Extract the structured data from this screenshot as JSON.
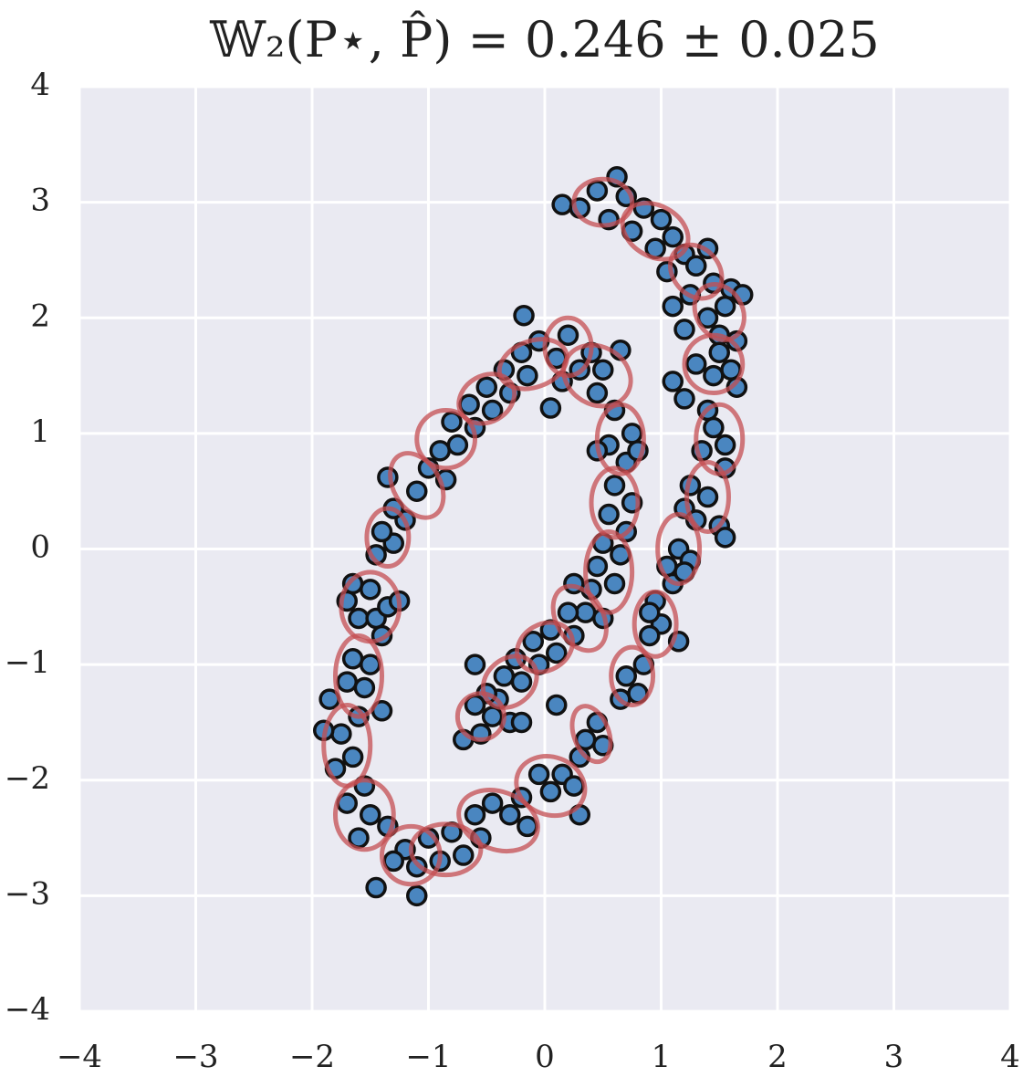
{
  "chart_data": {
    "type": "scatter",
    "title": "𝕎₂(P⋆, P̂) = 0.246 ± 0.025",
    "xlim": [
      -4,
      4
    ],
    "ylim": [
      -4,
      4
    ],
    "xticks": [
      {
        "value": -4,
        "label": "−4"
      },
      {
        "value": -3,
        "label": "−3"
      },
      {
        "value": -2,
        "label": "−2"
      },
      {
        "value": -1,
        "label": "−1"
      },
      0,
      1,
      2,
      3,
      4
    ],
    "yticks": [
      {
        "value": -4,
        "label": "−4"
      },
      {
        "value": -3,
        "label": "−3"
      },
      {
        "value": -2,
        "label": "−2"
      },
      {
        "value": -1,
        "label": "−1"
      },
      0,
      1,
      2,
      3,
      4
    ],
    "grid": true,
    "points": {
      "color": "#4a86c0",
      "edgecolor": "#111111",
      "x": [
        0.15,
        0.3,
        0.45,
        0.62,
        0.55,
        0.7,
        0.85,
        0.75,
        1.0,
        0.95,
        1.1,
        1.2,
        1.05,
        1.3,
        1.4,
        1.25,
        1.45,
        1.55,
        1.6,
        1.4,
        1.7,
        1.5,
        1.65,
        1.2,
        1.1,
        1.3,
        1.45,
        1.6,
        1.1,
        1.2,
        1.5,
        1.65,
        1.4,
        1.45,
        1.55,
        1.35,
        1.55,
        1.25,
        1.4,
        1.2,
        1.5,
        1.3,
        1.55,
        1.15,
        1.05,
        1.25,
        1.1,
        1.2,
        0.95,
        1.0,
        0.9,
        1.15,
        0.85,
        0.7,
        0.8,
        0.65,
        0.9,
        0.45,
        0.35,
        0.5,
        0.3,
        0.15,
        0.05,
        -0.05,
        0.25,
        0.3,
        -0.2,
        -0.3,
        -0.45,
        -0.15,
        -0.55,
        -0.6,
        -0.8,
        -0.7,
        -0.9,
        -1.0,
        -1.1,
        -1.2,
        -1.1,
        -1.3,
        -1.45,
        -1.35,
        -1.5,
        -1.6,
        -1.7,
        -1.55,
        -1.8,
        -1.65,
        -1.75,
        -1.9,
        -1.6,
        -1.85,
        -1.7,
        -1.55,
        -1.65,
        -1.5,
        -1.4,
        -1.6,
        -1.7,
        -1.5,
        -1.45,
        -1.35,
        -1.25,
        -1.4,
        -1.65,
        -1.45,
        -1.3,
        -1.4,
        -1.2,
        -1.3,
        -1.1,
        -1.35,
        -1.0,
        -0.85,
        -0.9,
        -0.75,
        -0.8,
        -0.6,
        -0.65,
        -0.45,
        -0.5,
        -0.3,
        -0.35,
        -0.15,
        -0.2,
        -0.05,
        0.1,
        0.2,
        0.3,
        0.15,
        0.4,
        0.5,
        0.65,
        0.45,
        0.05,
        -0.18,
        0.6,
        0.75,
        0.55,
        0.7,
        0.8,
        0.6,
        0.75,
        0.55,
        0.7,
        0.5,
        0.65,
        0.45,
        0.6,
        0.4,
        0.35,
        0.5,
        0.2,
        0.25,
        0.05,
        0.1,
        -0.1,
        -0.05,
        -0.25,
        -0.2,
        -0.35,
        -0.4,
        -0.5,
        -0.45,
        -0.6,
        -0.55,
        -0.3,
        -0.7,
        -0.2,
        0.1,
        -0.6,
        0.25,
        0.45
      ],
      "y": [
        2.98,
        2.95,
        3.1,
        3.22,
        2.85,
        3.05,
        2.95,
        2.75,
        2.85,
        2.6,
        2.7,
        2.55,
        2.4,
        2.45,
        2.6,
        2.2,
        2.3,
        2.1,
        2.25,
        2.0,
        2.2,
        1.85,
        1.8,
        1.9,
        2.1,
        1.6,
        1.5,
        1.55,
        1.45,
        1.3,
        1.7,
        1.4,
        1.2,
        1.05,
        0.9,
        0.85,
        0.7,
        0.55,
        0.45,
        0.35,
        0.2,
        0.25,
        0.1,
        0.0,
        -0.15,
        -0.1,
        -0.3,
        -0.2,
        -0.45,
        -0.65,
        -0.75,
        -0.8,
        -1.0,
        -1.1,
        -1.25,
        -1.3,
        -0.55,
        -1.5,
        -1.65,
        -1.7,
        -1.8,
        -1.95,
        -2.1,
        -1.95,
        -2.05,
        -2.3,
        -2.15,
        -2.3,
        -2.2,
        -2.4,
        -2.5,
        -2.3,
        -2.45,
        -2.65,
        -2.7,
        -2.5,
        -2.75,
        -2.6,
        -3.0,
        -2.7,
        -2.93,
        -2.4,
        -2.3,
        -2.5,
        -2.2,
        -2.05,
        -1.9,
        -1.8,
        -1.6,
        -1.57,
        -1.45,
        -1.3,
        -1.15,
        -1.2,
        -0.95,
        -1.0,
        -1.4,
        -0.6,
        -0.45,
        -0.35,
        -0.6,
        -0.5,
        -0.45,
        -0.75,
        -0.3,
        -0.05,
        0.05,
        0.15,
        0.25,
        0.35,
        0.5,
        0.62,
        0.7,
        0.6,
        0.85,
        0.9,
        1.1,
        1.05,
        1.25,
        1.2,
        1.4,
        1.35,
        1.55,
        1.5,
        1.7,
        1.8,
        1.65,
        1.85,
        1.55,
        1.45,
        1.7,
        1.55,
        1.72,
        1.35,
        1.22,
        2.02,
        1.2,
        1.0,
        0.9,
        0.75,
        0.85,
        0.55,
        0.4,
        0.3,
        0.15,
        0.05,
        -0.05,
        -0.15,
        -0.3,
        -0.35,
        -0.55,
        -0.6,
        -0.55,
        -0.75,
        -0.7,
        -0.9,
        -0.8,
        -1.0,
        -0.95,
        -1.15,
        -1.1,
        -1.3,
        -1.25,
        -1.45,
        -1.35,
        -1.6,
        -1.5,
        -1.65,
        -1.5,
        -1.35,
        -1.0,
        -0.3,
        0.85
      ]
    },
    "components": {
      "color": "#c44e52",
      "x": [
        0.5,
        0.95,
        1.3,
        1.5,
        1.45,
        1.5,
        1.4,
        1.15,
        0.95,
        0.75,
        0.4,
        0.05,
        -0.4,
        -0.85,
        -1.15,
        -1.55,
        -1.7,
        -1.6,
        -1.5,
        -1.35,
        -1.1,
        -0.85,
        -0.5,
        -0.1,
        0.2,
        0.45,
        0.65,
        0.6,
        0.55,
        0.3,
        0.0,
        -0.3,
        -0.55
      ],
      "y": [
        3.0,
        2.75,
        2.4,
        2.05,
        1.6,
        0.95,
        0.45,
        0.0,
        -0.65,
        -1.1,
        -1.6,
        -2.05,
        -2.35,
        -2.6,
        -2.65,
        -2.3,
        -1.7,
        -1.1,
        -0.5,
        0.1,
        0.55,
        0.95,
        1.3,
        1.6,
        1.75,
        1.5,
        0.95,
        0.4,
        -0.2,
        -0.6,
        -0.85,
        -1.15,
        -1.45
      ],
      "rx": [
        0.25,
        0.3,
        0.25,
        0.25,
        0.25,
        0.2,
        0.18,
        0.18,
        0.18,
        0.18,
        0.15,
        0.3,
        0.35,
        0.3,
        0.25,
        0.25,
        0.2,
        0.2,
        0.25,
        0.18,
        0.2,
        0.25,
        0.25,
        0.3,
        0.2,
        0.3,
        0.2,
        0.2,
        0.2,
        0.2,
        0.25,
        0.25,
        0.2
      ],
      "ry": [
        0.2,
        0.22,
        0.2,
        0.2,
        0.25,
        0.3,
        0.3,
        0.3,
        0.28,
        0.25,
        0.25,
        0.25,
        0.25,
        0.22,
        0.25,
        0.3,
        0.35,
        0.35,
        0.3,
        0.25,
        0.3,
        0.25,
        0.2,
        0.2,
        0.25,
        0.25,
        0.3,
        0.3,
        0.35,
        0.3,
        0.2,
        0.2,
        0.2
      ],
      "angle": [
        0,
        -30,
        -50,
        -60,
        0,
        0,
        0,
        0,
        0,
        0,
        20,
        -20,
        -20,
        0,
        0,
        0,
        0,
        0,
        0,
        0,
        30,
        0,
        30,
        20,
        0,
        -30,
        0,
        0,
        0,
        30,
        30,
        40,
        0
      ]
    }
  }
}
